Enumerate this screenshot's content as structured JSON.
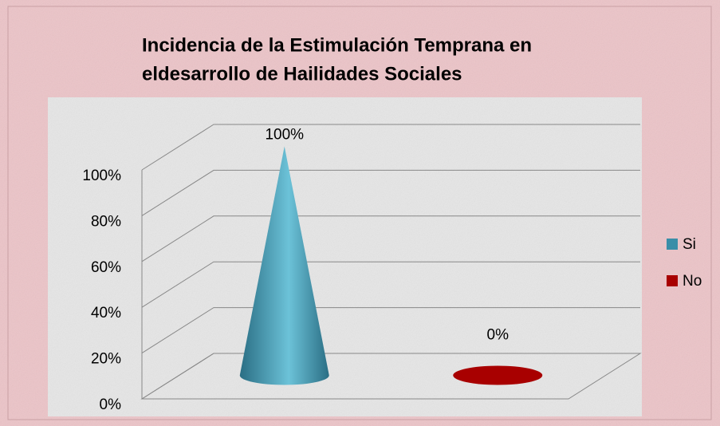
{
  "chart_data": {
    "type": "cone3d",
    "title": [
      "Incidencia de la Estimulación Temprana  en",
      "eldesarrollo de Hailidades Sociales"
    ],
    "categories": [
      null
    ],
    "series": [
      {
        "name": "Si",
        "color": "#3a8ea8",
        "values": [
          100
        ],
        "value_labels": [
          "100%"
        ]
      },
      {
        "name": "No",
        "color": "#a80000",
        "values": [
          0
        ],
        "value_labels": [
          "0%"
        ]
      }
    ],
    "ylim": [
      0,
      100
    ],
    "yticks": [
      {
        "value": 0,
        "label": "0%"
      },
      {
        "value": 20,
        "label": "20%"
      },
      {
        "value": 40,
        "label": "40%"
      },
      {
        "value": 60,
        "label": "60%"
      },
      {
        "value": 80,
        "label": "80%"
      },
      {
        "value": 100,
        "label": "100%"
      }
    ],
    "grid": true,
    "legend": "right"
  }
}
